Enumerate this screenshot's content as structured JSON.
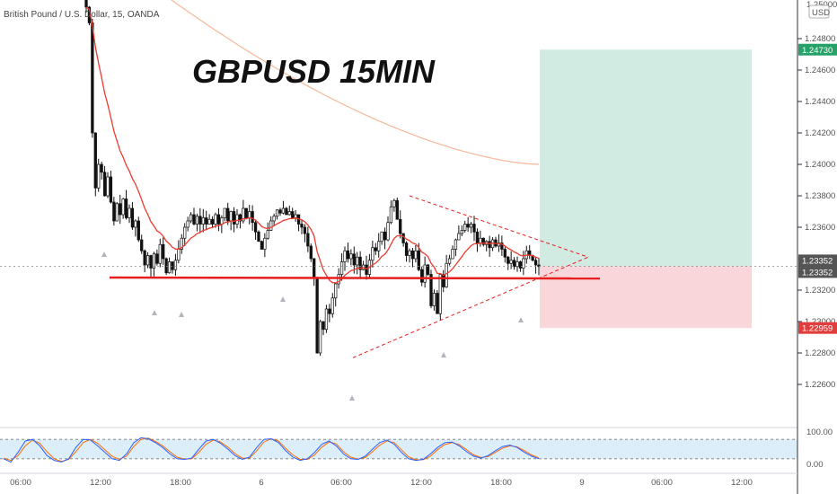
{
  "header": {
    "symbol_line": "British Pound / U.S. Dollar, 15, OANDA",
    "currency_badge": "USD"
  },
  "overlay_title": "GBPUSD 15MIN",
  "colors": {
    "candle": "#111111",
    "ema_fast": "#ee3a2e",
    "ema_slow": "#f9b79a",
    "support": "#e61e1e",
    "triangle": "#e61e1e",
    "target_zone": "#d1ebe3",
    "stop_zone": "#f9d6d9",
    "target_label": "#26a269",
    "stop_label": "#e23d3d",
    "price_label": "#555555",
    "stoch_k": "#2962ff",
    "stoch_d": "#ff6d00",
    "stoch_band": "#ddeefb"
  },
  "price_axis": {
    "ticks": [
      "1.24800",
      "1.24600",
      "1.24400",
      "1.24200",
      "1.24000",
      "1.23800",
      "1.23600",
      "1.23200",
      "1.23000",
      "1.22800",
      "1.22600"
    ],
    "top_partial_label": "1.25000",
    "target_label": "1.24730",
    "last_price_labels": [
      "1.23352",
      "1.23352"
    ],
    "stop_label": "1.22959"
  },
  "stoch_axis": {
    "ticks": [
      "100.00",
      "0.00"
    ]
  },
  "time_axis": {
    "ticks": [
      "06:00",
      "12:00",
      "18:00",
      "6",
      "06:00",
      "12:00",
      "18:00",
      "9",
      "06:00",
      "12:00"
    ]
  },
  "chart_data": {
    "type": "candlestick",
    "symbol": "British Pound / U.S. Dollar",
    "interval": "15",
    "source": "OANDA",
    "ylim": [
      1.2255,
      1.2505
    ],
    "x_ticks": [
      "06:00",
      "12:00",
      "18:00",
      "6",
      "06:00",
      "12:00",
      "18:00",
      "9",
      "06:00",
      "12:00"
    ],
    "last_price": 1.23352,
    "long_position": {
      "entry": 1.23352,
      "target": 1.2473,
      "stop": 1.22959
    },
    "support_level": 1.2328,
    "triangle": {
      "upper": [
        [
          1.238
        ],
        [
          1.2344
        ]
      ],
      "lower": [
        [
          1.2277
        ],
        [
          1.2335
        ]
      ],
      "apex": 1.2341
    },
    "closes": [
      1.25,
      1.249,
      1.242,
      1.2385,
      1.24,
      1.2395,
      1.238,
      1.2392,
      1.2376,
      1.2364,
      1.2375,
      1.2368,
      1.2378,
      1.2366,
      1.2372,
      1.236,
      1.2364,
      1.2352,
      1.2345,
      1.2336,
      1.2342,
      1.2334,
      1.2343,
      1.2337,
      1.2349,
      1.234,
      1.2331,
      1.2338,
      1.2333,
      1.2339,
      1.2346,
      1.2353,
      1.236,
      1.2364,
      1.2368,
      1.2362,
      1.2367,
      1.2362,
      1.2366,
      1.2362,
      1.2365,
      1.2362,
      1.2368,
      1.2362,
      1.2366,
      1.2372,
      1.2364,
      1.237,
      1.2362,
      1.2368,
      1.2364,
      1.2372,
      1.2366,
      1.237,
      1.2363,
      1.2357,
      1.2351,
      1.2346,
      1.2353,
      1.2358,
      1.2364,
      1.2367,
      1.2371,
      1.2369,
      1.2372,
      1.2368,
      1.237,
      1.2366,
      1.2368,
      1.2362,
      1.236,
      1.2356,
      1.2348,
      1.234,
      1.2328,
      1.228,
      1.23,
      1.2295,
      1.2308,
      1.2305,
      1.2315,
      1.2324,
      1.233,
      1.2338,
      1.2345,
      1.234,
      1.2343,
      1.2336,
      1.2341,
      1.2333,
      1.2336,
      1.233,
      1.2339,
      1.2347,
      1.2345,
      1.2351,
      1.2357,
      1.2352,
      1.2363,
      1.2373,
      1.2377,
      1.2365,
      1.2356,
      1.235,
      1.2342,
      1.2345,
      1.234,
      1.2345,
      1.2333,
      1.2325,
      1.2336,
      1.233,
      1.231,
      1.2318,
      1.2305,
      1.233,
      1.2322,
      1.2337,
      1.234,
      1.2346,
      1.2352,
      1.2356,
      1.2358,
      1.2362,
      1.236,
      1.2362,
      1.2357,
      1.235,
      1.2353,
      1.2349,
      1.2351,
      1.2347,
      1.2352,
      1.2348,
      1.235,
      1.2346,
      1.2341,
      1.2337,
      1.2339,
      1.2335,
      1.2338,
      1.2334,
      1.234,
      1.2345,
      1.2342,
      1.2339,
      1.2336,
      1.2335
    ],
    "ema_fast_label": "",
    "ema_slow_label": "",
    "stochastic": {
      "k": [
        20,
        10,
        40,
        75,
        80,
        60,
        30,
        15,
        10,
        20,
        55,
        80,
        78,
        60,
        40,
        20,
        15,
        35,
        70,
        85,
        82,
        70,
        55,
        35,
        20,
        18,
        22,
        50,
        75,
        80,
        68,
        50,
        30,
        18,
        25,
        55,
        80,
        82,
        70,
        45,
        25,
        15,
        20,
        40,
        65,
        75,
        60,
        35,
        20,
        18,
        28,
        50,
        70,
        78,
        65,
        40,
        20,
        15,
        18,
        35,
        55,
        70,
        72,
        60,
        42,
        28,
        22,
        30,
        45,
        58,
        62,
        55,
        40,
        28,
        20
      ],
      "d": [
        22,
        15,
        30,
        60,
        78,
        68,
        42,
        20,
        12,
        18,
        42,
        70,
        80,
        68,
        48,
        28,
        18,
        28,
        58,
        80,
        84,
        74,
        60,
        42,
        25,
        19,
        20,
        40,
        65,
        78,
        72,
        56,
        36,
        22,
        22,
        45,
        72,
        82,
        75,
        52,
        32,
        18,
        18,
        32,
        56,
        72,
        66,
        42,
        25,
        19,
        24,
        42,
        62,
        75,
        70,
        48,
        26,
        17,
        17,
        28,
        48,
        64,
        70,
        64,
        48,
        32,
        24,
        27,
        40,
        53,
        60,
        57,
        45,
        32,
        23
      ],
      "ylim": [
        0,
        100
      ],
      "bands": [
        80,
        20
      ]
    }
  }
}
